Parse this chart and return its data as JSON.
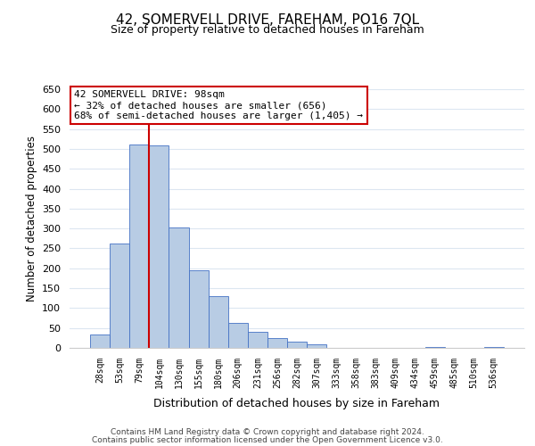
{
  "title": "42, SOMERVELL DRIVE, FAREHAM, PO16 7QL",
  "subtitle": "Size of property relative to detached houses in Fareham",
  "xlabel": "Distribution of detached houses by size in Fareham",
  "ylabel": "Number of detached properties",
  "bar_labels": [
    "28sqm",
    "53sqm",
    "79sqm",
    "104sqm",
    "130sqm",
    "155sqm",
    "180sqm",
    "206sqm",
    "231sqm",
    "256sqm",
    "282sqm",
    "307sqm",
    "333sqm",
    "358sqm",
    "383sqm",
    "409sqm",
    "434sqm",
    "459sqm",
    "485sqm",
    "510sqm",
    "536sqm"
  ],
  "bar_values": [
    33,
    263,
    512,
    508,
    302,
    195,
    130,
    63,
    40,
    25,
    15,
    8,
    1,
    1,
    0,
    0,
    0,
    2,
    0,
    0,
    2
  ],
  "bar_color": "#b8cce4",
  "bar_edge_color": "#4472c4",
  "background_color": "#ffffff",
  "grid_color": "#dce6f1",
  "vline_x_idx": 3,
  "vline_x_offset": -0.5,
  "vline_color": "#cc0000",
  "annotation_text": "42 SOMERVELL DRIVE: 98sqm\n← 32% of detached houses are smaller (656)\n68% of semi-detached houses are larger (1,405) →",
  "annotation_box_color": "#ffffff",
  "annotation_box_edge": "#cc0000",
  "ylim": [
    0,
    650
  ],
  "yticks": [
    0,
    50,
    100,
    150,
    200,
    250,
    300,
    350,
    400,
    450,
    500,
    550,
    600,
    650
  ],
  "footnote1": "Contains HM Land Registry data © Crown copyright and database right 2024.",
  "footnote2": "Contains public sector information licensed under the Open Government Licence v3.0."
}
